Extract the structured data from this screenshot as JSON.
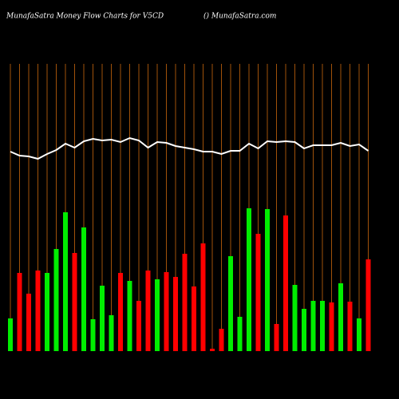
{
  "chart_data": {
    "type": "bar",
    "title": "MunafaSatra  Money Flow  Charts for V5CD",
    "subtitle": "() MunafaSatra.com",
    "background": "#000000",
    "grid_color": "#a0520a",
    "ylim": [
      0,
      360
    ],
    "series": [
      {
        "type": "bar",
        "values": [
          41,
          98,
          72,
          101,
          98,
          128,
          174,
          123,
          155,
          40,
          82,
          45,
          98,
          88,
          63,
          101,
          90,
          99,
          93,
          122,
          81,
          135,
          3,
          28,
          119,
          43,
          179,
          147,
          178,
          34,
          170,
          83,
          53,
          63,
          63,
          61,
          85,
          62,
          41,
          115
        ],
        "colors": [
          "#00ee00",
          "#ff0000",
          "#ff0000",
          "#ff0000",
          "#00ee00",
          "#00ee00",
          "#00ee00",
          "#ff0000",
          "#00ee00",
          "#00ee00",
          "#00ee00",
          "#00ee00",
          "#ff0000",
          "#00ee00",
          "#ff0000",
          "#ff0000",
          "#00ee00",
          "#ff0000",
          "#ff0000",
          "#ff0000",
          "#ff0000",
          "#ff0000",
          "#ff0000",
          "#ff0000",
          "#00ee00",
          "#00ee00",
          "#00ee00",
          "#ff0000",
          "#00ee00",
          "#ff0000",
          "#ff0000",
          "#00ee00",
          "#00ee00",
          "#00ee00",
          "#00ee00",
          "#ff0000",
          "#00ee00",
          "#ff0000",
          "#00ee00",
          "#ff0000"
        ]
      },
      {
        "type": "line",
        "color": "#ffffff",
        "values": [
          250,
          245,
          244,
          241,
          247,
          252,
          260,
          255,
          263,
          266,
          264,
          265,
          262,
          267,
          264,
          255,
          262,
          261,
          257,
          255,
          253,
          250,
          250,
          247,
          251,
          251,
          260,
          254,
          263,
          262,
          263,
          262,
          254,
          258,
          258,
          258,
          261,
          257,
          259,
          251
        ]
      }
    ]
  }
}
